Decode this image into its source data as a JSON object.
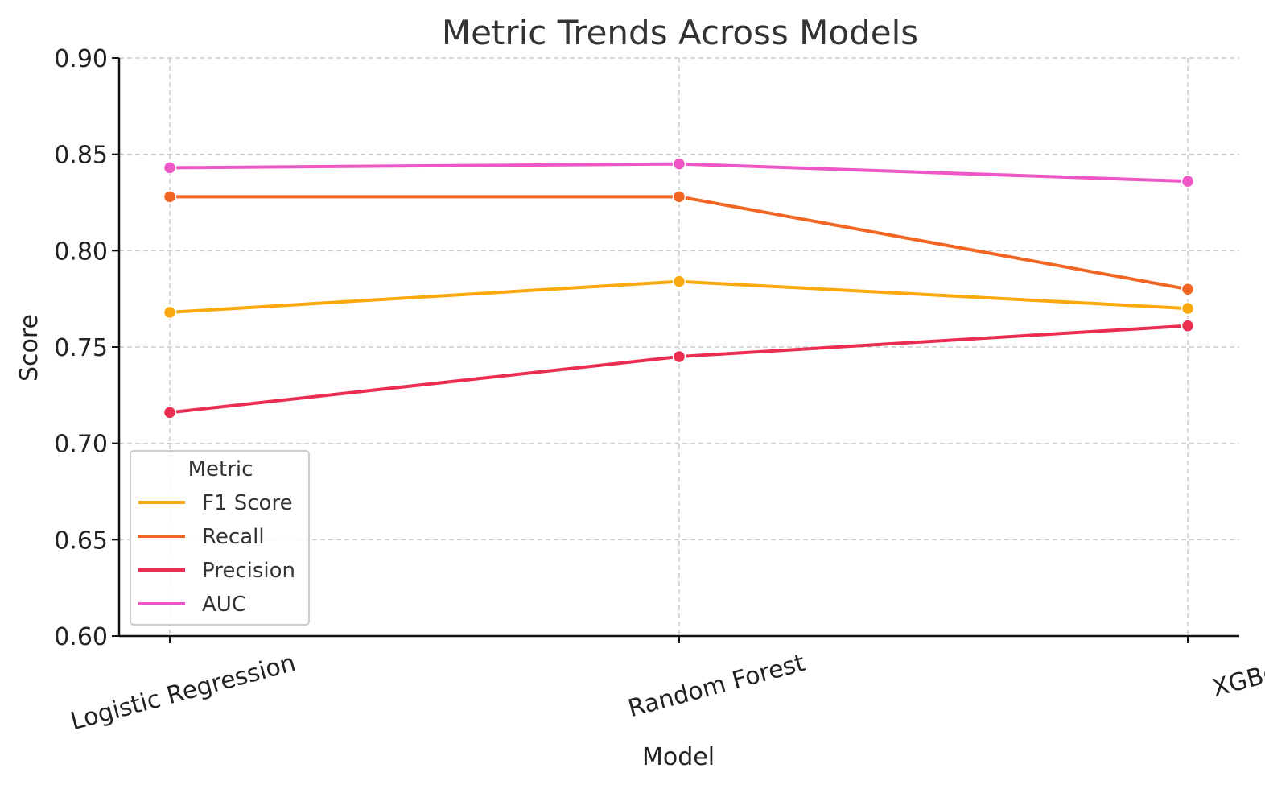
{
  "chart_data": {
    "type": "line",
    "title": "Metric Trends Across Models",
    "xlabel": "Model",
    "ylabel": "Score",
    "categories": [
      "Logistic Regression",
      "Random Forest",
      "XGBoost"
    ],
    "ylim": [
      0.6,
      0.9
    ],
    "yticks": [
      "0.60",
      "0.65",
      "0.70",
      "0.75",
      "0.80",
      "0.85",
      "0.90"
    ],
    "grid": true,
    "legend": {
      "title": "Metric",
      "placement": "lower-left"
    },
    "series": [
      {
        "name": "F1 Score",
        "color": "#F9A90E",
        "values": [
          0.768,
          0.784,
          0.77
        ]
      },
      {
        "name": "Recall",
        "color": "#F26522",
        "values": [
          0.828,
          0.828,
          0.78
        ]
      },
      {
        "name": "Precision",
        "color": "#EC2D52",
        "values": [
          0.716,
          0.745,
          0.761
        ]
      },
      {
        "name": "AUC",
        "color": "#F057C6",
        "values": [
          0.843,
          0.845,
          0.836
        ]
      }
    ]
  }
}
